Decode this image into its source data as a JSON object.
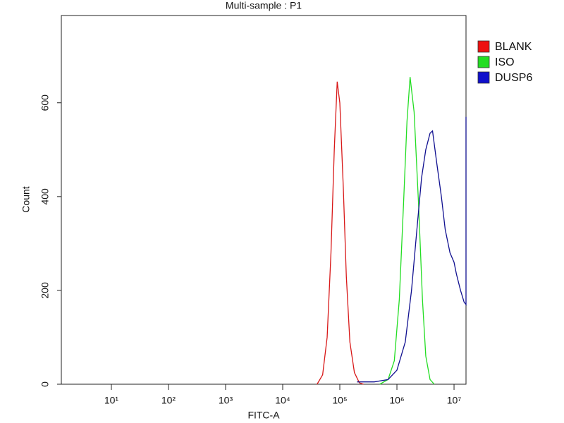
{
  "chart_data": {
    "type": "line",
    "title": "Multi-sample : P1",
    "x_label": "FITC-A",
    "y_label": "Count",
    "xscale": "log",
    "xlim": [
      1.33,
      16200000
    ],
    "ylim": [
      0,
      786
    ],
    "xticks": [
      {
        "value": 10,
        "label": "10¹"
      },
      {
        "value": 100,
        "label": "10²"
      },
      {
        "value": 1000,
        "label": "10³"
      },
      {
        "value": 10000,
        "label": "10⁴"
      },
      {
        "value": 100000,
        "label": "10⁵"
      },
      {
        "value": 1000000,
        "label": "10⁶"
      },
      {
        "value": 10000000,
        "label": "10⁷"
      }
    ],
    "yticks": [
      0,
      200,
      400,
      600
    ],
    "grid": false,
    "legend": "right",
    "series": [
      {
        "name": "BLANK",
        "color": "#d81818",
        "legend_color": "#ee1111",
        "x": [
          40000,
          50000,
          60000,
          70000,
          80000,
          90000,
          100000,
          115000,
          130000,
          150000,
          180000,
          220000,
          260000
        ],
        "values": [
          0,
          20,
          100,
          280,
          500,
          645,
          600,
          420,
          230,
          90,
          25,
          3,
          0
        ]
      },
      {
        "name": "ISO",
        "color": "#22dd22",
        "legend_color": "#22dd22",
        "x": [
          500000,
          700000,
          900000,
          1100000,
          1300000,
          1500000,
          1700000,
          2000000,
          2400000,
          2800000,
          3200000,
          3800000,
          4500000
        ],
        "values": [
          0,
          10,
          50,
          180,
          380,
          560,
          655,
          580,
          380,
          180,
          60,
          10,
          0
        ]
      },
      {
        "name": "DUSP6",
        "color": "#101090",
        "legend_color": "#1010cc",
        "x": [
          200000,
          400000,
          700000,
          1000000,
          1400000,
          1800000,
          2200000,
          2700000,
          3200000,
          3800000,
          4200000,
          5000000,
          6000000,
          7000000,
          8500000,
          10000000,
          11000000,
          13000000,
          15000000,
          16200000,
          16200000
        ],
        "values": [
          5,
          5,
          10,
          30,
          90,
          200,
          320,
          440,
          500,
          535,
          540,
          470,
          400,
          330,
          280,
          260,
          235,
          200,
          175,
          170,
          570
        ]
      }
    ]
  }
}
